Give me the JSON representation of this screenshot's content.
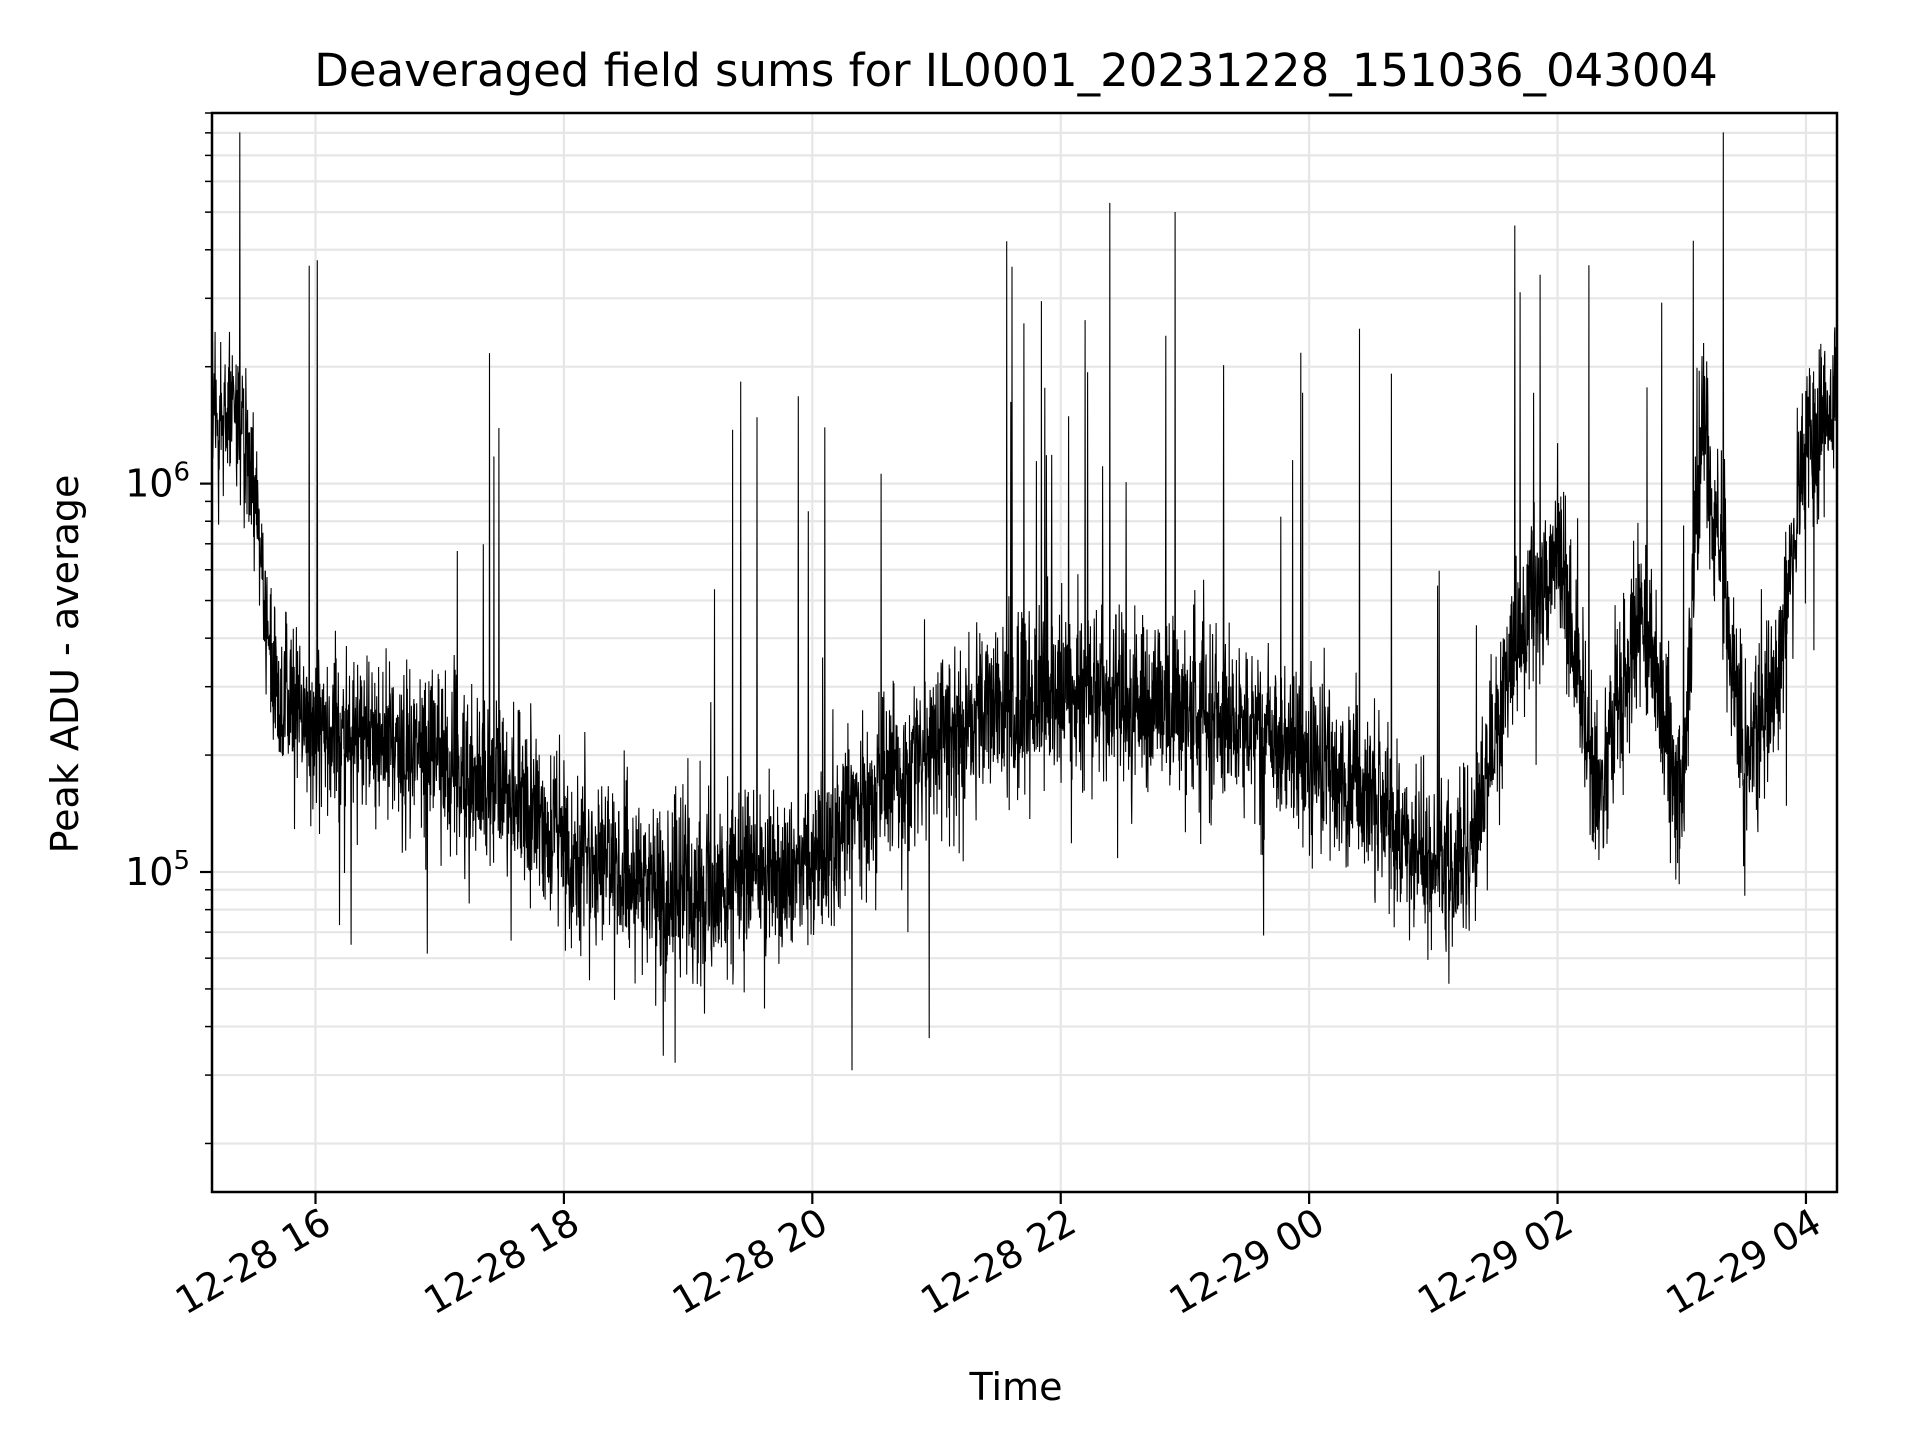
{
  "chart_data": {
    "type": "line",
    "title": "Deaveraged field sums for IL0001_20231228_151036_043004",
    "xlabel": "Time",
    "ylabel": "Peak ADU - average",
    "yscale": "log",
    "xlim": [
      "2023-12-28 15:10",
      "2023-12-29 04:15"
    ],
    "ylim": [
      15000,
      9000000
    ],
    "grid": true,
    "x_ticks": [
      "12-28 16",
      "12-28 18",
      "12-28 20",
      "12-28 22",
      "12-29 00",
      "12-29 02",
      "12-29 04"
    ],
    "x_tick_values": [
      "2023-12-28 16:00",
      "2023-12-28 18:00",
      "2023-12-28 20:00",
      "2023-12-28 22:00",
      "2023-12-29 00:00",
      "2023-12-29 02:00",
      "2023-12-29 04:00"
    ],
    "y_ticks": [
      {
        "base": "10",
        "exp": "5",
        "value": 100000
      },
      {
        "base": "10",
        "exp": "6",
        "value": 1000000
      }
    ],
    "series_color": "#000000",
    "series": [
      {
        "x": [
          "2023-12-28 15:10",
          "2023-12-28 15:20",
          "2023-12-28 15:30",
          "2023-12-28 15:40",
          "2023-12-28 16:00",
          "2023-12-28 16:30",
          "2023-12-28 17:00",
          "2023-12-28 17:30",
          "2023-12-28 18:00",
          "2023-12-28 18:30",
          "2023-12-28 19:00",
          "2023-12-28 19:30",
          "2023-12-28 20:00",
          "2023-12-28 20:30",
          "2023-12-28 21:00",
          "2023-12-28 21:30",
          "2023-12-28 22:00",
          "2023-12-28 22:30",
          "2023-12-28 23:00",
          "2023-12-28 23:30",
          "2023-12-29 00:00",
          "2023-12-29 00:30",
          "2023-12-29 01:00",
          "2023-12-29 01:20",
          "2023-12-29 01:40",
          "2023-12-29 02:00",
          "2023-12-29 02:20",
          "2023-12-29 02:40",
          "2023-12-29 03:00",
          "2023-12-29 03:10",
          "2023-12-29 03:30",
          "2023-12-29 03:45",
          "2023-12-29 04:00",
          "2023-12-29 04:15"
        ],
        "y": [
          1400000,
          1500000,
          1100000,
          300000,
          240000,
          220000,
          200000,
          160000,
          120000,
          95000,
          90000,
          95000,
          110000,
          160000,
          220000,
          260000,
          290000,
          270000,
          260000,
          240000,
          200000,
          150000,
          100000,
          120000,
          400000,
          700000,
          150000,
          500000,
          150000,
          1500000,
          200000,
          300000,
          1300000,
          1600000
        ]
      }
    ]
  }
}
